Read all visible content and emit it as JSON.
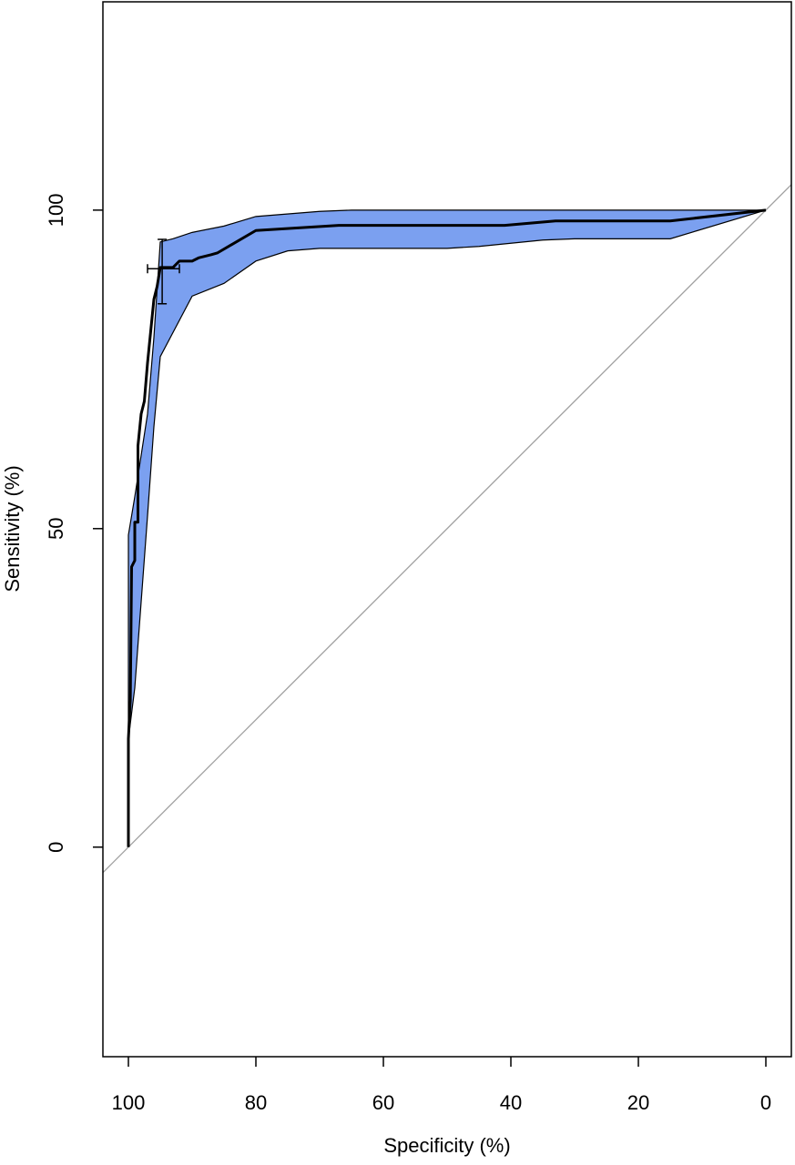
{
  "chart_data": {
    "type": "roc",
    "x_label": "Specificity (%)",
    "y_label": "Sensitivity (%)",
    "xlim": [
      104,
      -4
    ],
    "ylim": [
      -32.9,
      132.7
    ],
    "xticks": [
      100,
      80,
      60,
      40,
      20,
      0
    ],
    "yticks": [
      0,
      50,
      100
    ],
    "curve": {
      "color": "#000000",
      "x": [
        100,
        100,
        99.7,
        99.5,
        99,
        99,
        98.5,
        98.5,
        98,
        97.5,
        97,
        96.5,
        96,
        95.5,
        95,
        94,
        93,
        92,
        90,
        89,
        87,
        86,
        80,
        67,
        41,
        33,
        15,
        0
      ],
      "y": [
        0,
        17,
        23,
        44,
        45,
        51,
        51,
        63,
        68,
        70,
        76,
        81,
        86,
        88,
        91,
        91,
        91,
        92,
        92,
        92.5,
        93,
        93.3,
        96.8,
        97.6,
        97.6,
        98.3,
        98.3,
        100
      ]
    },
    "ci_band": {
      "color": "#7ba0f0",
      "x_upper": [
        100,
        99,
        97,
        96,
        95,
        93,
        90,
        85,
        80,
        70,
        65,
        0
      ],
      "upper": [
        49,
        55,
        68,
        80,
        95,
        95.5,
        96.5,
        97.5,
        99,
        99.8,
        100,
        100
      ],
      "x_lower": [
        0,
        15,
        30,
        35,
        45,
        50,
        70,
        75,
        80,
        85,
        90,
        95,
        96,
        97,
        99,
        100
      ],
      "lower": [
        100,
        95.5,
        95.5,
        95.3,
        94.3,
        94,
        94,
        93.6,
        92,
        88.5,
        86.5,
        77,
        66,
        52,
        25,
        17
      ]
    },
    "error_bar": {
      "x": 94.7,
      "y": 90.8,
      "x_low": 97,
      "x_high": 92,
      "y_low": 85.3,
      "y_high": 95.4
    },
    "diagonal_color": "#a0a0a0"
  }
}
